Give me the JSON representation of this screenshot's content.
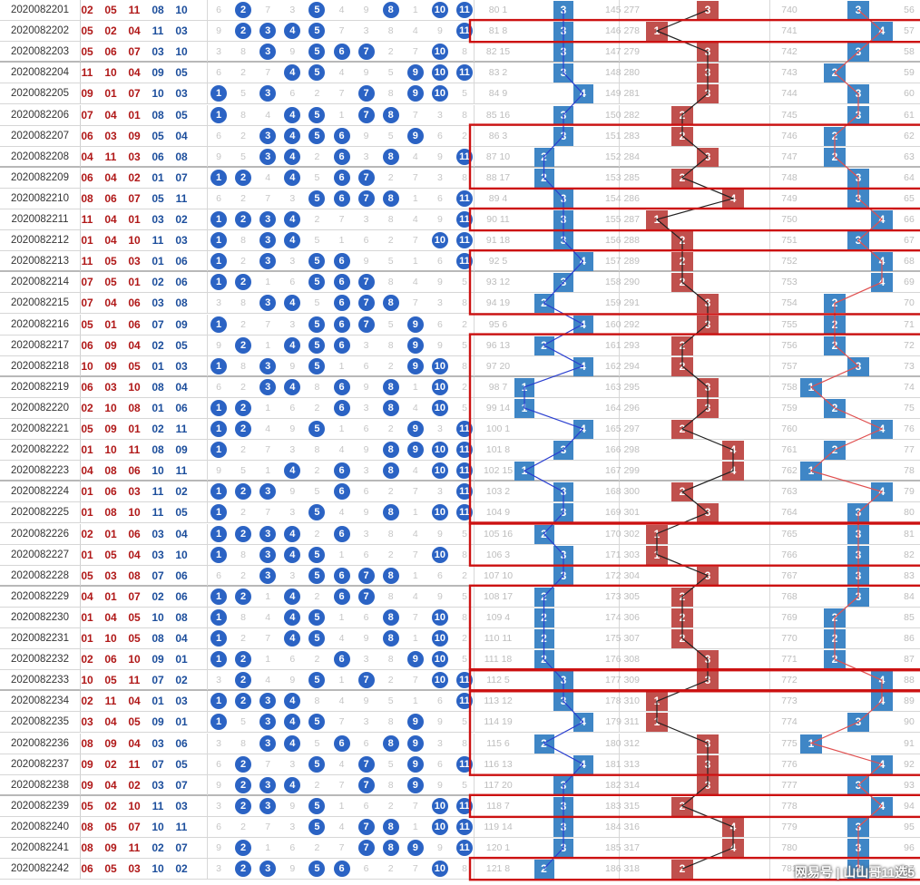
{
  "rows": [
    {
      "id": "2020082201",
      "draw": [
        "02",
        "05",
        "11",
        "08",
        "10"
      ],
      "balls": [
        2,
        5,
        8,
        10,
        11
      ],
      "a": 3,
      "b": 3,
      "c": 3
    },
    {
      "id": "2020082202",
      "draw": [
        "05",
        "02",
        "04",
        "11",
        "03"
      ],
      "balls": [
        2,
        3,
        4,
        5,
        11
      ],
      "a": 3,
      "b": 1,
      "c": 4
    },
    {
      "id": "2020082203",
      "draw": [
        "05",
        "06",
        "07",
        "03",
        "10"
      ],
      "balls": [
        3,
        5,
        6,
        7,
        10
      ],
      "a": 3,
      "b": 3,
      "c": 3
    },
    {
      "id": "2020082204",
      "draw": [
        "11",
        "10",
        "04",
        "09",
        "05"
      ],
      "balls": [
        4,
        5,
        9,
        10,
        11
      ],
      "a": 3,
      "b": 3,
      "c": 2
    },
    {
      "id": "2020082205",
      "draw": [
        "09",
        "01",
        "07",
        "10",
        "03"
      ],
      "balls": [
        1,
        3,
        7,
        9,
        10
      ],
      "a": 4,
      "b": 3,
      "c": 3
    },
    {
      "id": "2020082206",
      "draw": [
        "07",
        "04",
        "01",
        "08",
        "05"
      ],
      "balls": [
        1,
        4,
        5,
        7,
        8
      ],
      "a": 3,
      "b": 2,
      "c": 3
    },
    {
      "id": "2020082207",
      "draw": [
        "06",
        "03",
        "09",
        "05",
        "04"
      ],
      "balls": [
        3,
        4,
        5,
        6,
        9
      ],
      "a": 3,
      "b": 2,
      "c": 2
    },
    {
      "id": "2020082208",
      "draw": [
        "04",
        "11",
        "03",
        "06",
        "08"
      ],
      "balls": [
        3,
        4,
        6,
        8,
        11
      ],
      "a": 2,
      "b": 3,
      "c": 2
    },
    {
      "id": "2020082209",
      "draw": [
        "06",
        "04",
        "02",
        "01",
        "07"
      ],
      "balls": [
        1,
        2,
        4,
        6,
        7
      ],
      "a": 2,
      "b": 2,
      "c": 3
    },
    {
      "id": "2020082210",
      "draw": [
        "08",
        "06",
        "07",
        "05",
        "11"
      ],
      "balls": [
        5,
        6,
        7,
        8,
        11
      ],
      "a": 3,
      "b": 4,
      "c": 3
    },
    {
      "id": "2020082211",
      "draw": [
        "11",
        "04",
        "01",
        "03",
        "02"
      ],
      "balls": [
        1,
        2,
        3,
        4,
        11
      ],
      "a": 3,
      "b": 1,
      "c": 4
    },
    {
      "id": "2020082212",
      "draw": [
        "01",
        "04",
        "10",
        "11",
        "03"
      ],
      "balls": [
        1,
        3,
        4,
        10,
        11
      ],
      "a": 3,
      "b": 2,
      "c": 3
    },
    {
      "id": "2020082213",
      "draw": [
        "11",
        "05",
        "03",
        "01",
        "06"
      ],
      "balls": [
        1,
        3,
        5,
        6,
        11
      ],
      "a": 4,
      "b": 2,
      "c": 4
    },
    {
      "id": "2020082214",
      "draw": [
        "07",
        "05",
        "01",
        "02",
        "06"
      ],
      "balls": [
        1,
        2,
        5,
        6,
        7
      ],
      "a": 3,
      "b": 2,
      "c": 4
    },
    {
      "id": "2020082215",
      "draw": [
        "07",
        "04",
        "06",
        "03",
        "08"
      ],
      "balls": [
        3,
        4,
        6,
        7,
        8
      ],
      "a": 2,
      "b": 3,
      "c": 2
    },
    {
      "id": "2020082216",
      "draw": [
        "05",
        "01",
        "06",
        "07",
        "09"
      ],
      "balls": [
        1,
        5,
        6,
        7,
        9
      ],
      "a": 4,
      "b": 3,
      "c": 2
    },
    {
      "id": "2020082217",
      "draw": [
        "06",
        "09",
        "04",
        "02",
        "05"
      ],
      "balls": [
        2,
        4,
        5,
        6,
        9
      ],
      "a": 2,
      "b": 2,
      "c": 2
    },
    {
      "id": "2020082218",
      "draw": [
        "10",
        "09",
        "05",
        "01",
        "03"
      ],
      "balls": [
        1,
        3,
        5,
        9,
        10
      ],
      "a": 4,
      "b": 2,
      "c": 3
    },
    {
      "id": "2020082219",
      "draw": [
        "06",
        "03",
        "10",
        "08",
        "04"
      ],
      "balls": [
        3,
        4,
        6,
        8,
        10
      ],
      "a": 1,
      "b": 3,
      "c": 1
    },
    {
      "id": "2020082220",
      "draw": [
        "02",
        "10",
        "08",
        "01",
        "06"
      ],
      "balls": [
        1,
        2,
        6,
        8,
        10
      ],
      "a": 1,
      "b": 3,
      "c": 2
    },
    {
      "id": "2020082221",
      "draw": [
        "05",
        "09",
        "01",
        "02",
        "11"
      ],
      "balls": [
        1,
        2,
        5,
        9,
        11
      ],
      "a": 4,
      "b": 2,
      "c": 4
    },
    {
      "id": "2020082222",
      "draw": [
        "01",
        "10",
        "11",
        "08",
        "09"
      ],
      "balls": [
        1,
        8,
        9,
        10,
        11
      ],
      "a": 3,
      "b": 4,
      "c": 2
    },
    {
      "id": "2020082223",
      "draw": [
        "04",
        "08",
        "06",
        "10",
        "11"
      ],
      "balls": [
        4,
        6,
        8,
        10,
        11
      ],
      "a": 1,
      "b": 4,
      "c": 1
    },
    {
      "id": "2020082224",
      "draw": [
        "01",
        "06",
        "03",
        "11",
        "02"
      ],
      "balls": [
        1,
        2,
        3,
        6,
        11
      ],
      "a": 3,
      "b": 2,
      "c": 4
    },
    {
      "id": "2020082225",
      "draw": [
        "01",
        "08",
        "10",
        "11",
        "05"
      ],
      "balls": [
        1,
        5,
        8,
        10,
        11
      ],
      "a": 3,
      "b": 3,
      "c": 3
    },
    {
      "id": "2020082226",
      "draw": [
        "02",
        "01",
        "06",
        "03",
        "04"
      ],
      "balls": [
        1,
        2,
        3,
        4,
        6
      ],
      "a": 2,
      "b": 1,
      "c": 3
    },
    {
      "id": "2020082227",
      "draw": [
        "01",
        "05",
        "04",
        "03",
        "10"
      ],
      "balls": [
        1,
        3,
        4,
        5,
        10
      ],
      "a": 3,
      "b": 1,
      "c": 3
    },
    {
      "id": "2020082228",
      "draw": [
        "05",
        "03",
        "08",
        "07",
        "06"
      ],
      "balls": [
        3,
        5,
        6,
        7,
        8
      ],
      "a": 3,
      "b": 3,
      "c": 3
    },
    {
      "id": "2020082229",
      "draw": [
        "04",
        "01",
        "07",
        "02",
        "06"
      ],
      "balls": [
        1,
        2,
        4,
        6,
        7
      ],
      "a": 2,
      "b": 2,
      "c": 3
    },
    {
      "id": "2020082230",
      "draw": [
        "01",
        "04",
        "05",
        "10",
        "08"
      ],
      "balls": [
        1,
        4,
        5,
        8,
        10
      ],
      "a": 2,
      "b": 2,
      "c": 2
    },
    {
      "id": "2020082231",
      "draw": [
        "01",
        "10",
        "05",
        "08",
        "04"
      ],
      "balls": [
        1,
        4,
        5,
        8,
        10
      ],
      "a": 2,
      "b": 2,
      "c": 2
    },
    {
      "id": "2020082232",
      "draw": [
        "02",
        "06",
        "10",
        "09",
        "01"
      ],
      "balls": [
        1,
        2,
        6,
        9,
        10
      ],
      "a": 2,
      "b": 3,
      "c": 2
    },
    {
      "id": "2020082233",
      "draw": [
        "10",
        "05",
        "11",
        "07",
        "02"
      ],
      "balls": [
        2,
        5,
        7,
        10,
        11
      ],
      "a": 3,
      "b": 3,
      "c": 4
    },
    {
      "id": "2020082234",
      "draw": [
        "02",
        "11",
        "04",
        "01",
        "03"
      ],
      "balls": [
        1,
        2,
        3,
        4,
        11
      ],
      "a": 3,
      "b": 1,
      "c": 4
    },
    {
      "id": "2020082235",
      "draw": [
        "03",
        "04",
        "05",
        "09",
        "01"
      ],
      "balls": [
        1,
        3,
        4,
        5,
        9
      ],
      "a": 4,
      "b": 1,
      "c": 3
    },
    {
      "id": "2020082236",
      "draw": [
        "08",
        "09",
        "04",
        "03",
        "06"
      ],
      "balls": [
        3,
        4,
        6,
        8,
        9
      ],
      "a": 2,
      "b": 3,
      "c": 1
    },
    {
      "id": "2020082237",
      "draw": [
        "09",
        "02",
        "11",
        "07",
        "05"
      ],
      "balls": [
        2,
        5,
        7,
        9,
        11
      ],
      "a": 4,
      "b": 3,
      "c": 4
    },
    {
      "id": "2020082238",
      "draw": [
        "09",
        "04",
        "02",
        "03",
        "07"
      ],
      "balls": [
        2,
        3,
        4,
        7,
        9
      ],
      "a": 3,
      "b": 3,
      "c": 3
    },
    {
      "id": "2020082239",
      "draw": [
        "05",
        "02",
        "10",
        "11",
        "03"
      ],
      "balls": [
        2,
        3,
        5,
        10,
        11
      ],
      "a": 3,
      "b": 2,
      "c": 4
    },
    {
      "id": "2020082240",
      "draw": [
        "08",
        "05",
        "07",
        "10",
        "11"
      ],
      "balls": [
        5,
        7,
        8,
        10,
        11
      ],
      "a": 3,
      "b": 4,
      "c": 3
    },
    {
      "id": "2020082241",
      "draw": [
        "08",
        "09",
        "11",
        "02",
        "07"
      ],
      "balls": [
        2,
        7,
        8,
        9,
        11
      ],
      "a": 3,
      "b": 4,
      "c": 3
    },
    {
      "id": "2020082242",
      "draw": [
        "06",
        "05",
        "03",
        "10",
        "02"
      ],
      "balls": [
        2,
        3,
        5,
        6,
        10
      ],
      "a": 2,
      "b": 2,
      "c": 3
    }
  ],
  "watermark": "网易号 | 山山哥11选5",
  "colors": {
    "ball": "#2b63c4",
    "blue_cell": "#3f86c6",
    "red_cell": "#c0504d",
    "frame": "#cc1111"
  }
}
